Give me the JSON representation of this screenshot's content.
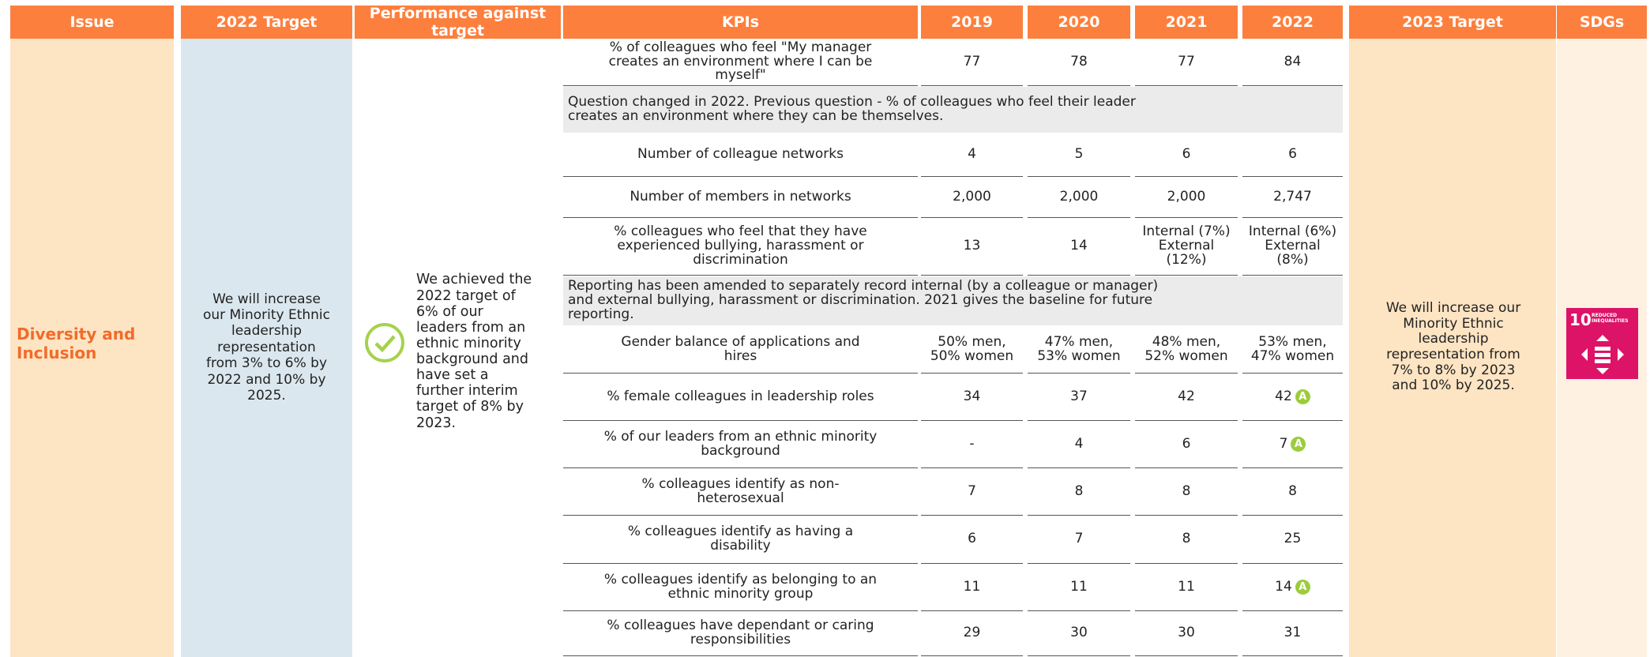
{
  "header": [
    "Issue",
    "2022 Target",
    "Performance against target",
    "KPIs",
    "2019",
    "2020",
    "2021",
    "2022",
    "2023 Target",
    "SDGs"
  ],
  "issue": "Diversity and Inclusion",
  "target_2022": "We will increase our Minority Ethnic leadership representation from 3% to 6% by 2022 and 10% by 2025.",
  "performance": "We achieved the 2022 target of 6% of our leaders from an ethnic minority background and have set a further interim target of 8% by 2023.",
  "target_2023": "We will increase our Minority Ethnic leadership representation from 7% to 8% by 2023 and 10% by 2025.",
  "sdg": {
    "number": "10",
    "label": "REDUCED INEQUALITIES"
  },
  "rows": [
    {
      "kpi": "% of colleagues who feel \"My manager creates an environment where I can be myself\"",
      "values": [
        "77",
        "78",
        "77",
        "84"
      ]
    },
    {
      "note": "Question changed in 2022. Previous question - % of colleagues who feel their leader creates an environment where they can be themselves."
    },
    {
      "kpi": "Number of colleague networks",
      "values": [
        "4",
        "5",
        "6",
        "6"
      ]
    },
    {
      "kpi": "Number of members in networks",
      "values": [
        "2,000",
        "2,000",
        "2,000",
        "2,747"
      ]
    },
    {
      "kpi": "% colleagues who feel that they have experienced bullying, harassment or discrimination",
      "values": [
        "13",
        "14",
        "Internal (7%) External (12%)",
        "Internal (6%) External (8%)"
      ]
    },
    {
      "note": "Reporting has been amended to separately record internal (by a colleague or manager) and external bullying, harassment or discrimination. 2021 gives the baseline for future reporting."
    },
    {
      "kpi": "Gender balance of applications and hires",
      "values": [
        "50% men, 50% women",
        "47% men, 53% women",
        "48% men, 52% women",
        "53% men, 47% women"
      ]
    },
    {
      "kpi": "% female colleagues in leadership roles",
      "values": [
        "34",
        "37",
        "42",
        "42"
      ],
      "badge": "A"
    },
    {
      "kpi": "% of our leaders from an ethnic minority background",
      "values": [
        "-",
        "4",
        "6",
        "7"
      ],
      "badge": "A"
    },
    {
      "kpi": "% colleagues identify as non-heterosexual",
      "values": [
        "7",
        "8",
        "8",
        "8"
      ]
    },
    {
      "kpi": "% colleagues identify as having a disability",
      "values": [
        "6",
        "7",
        "8",
        "25"
      ]
    },
    {
      "kpi": "% colleagues identify as belonging to an ethnic minority group",
      "values": [
        "11",
        "11",
        "11",
        "14"
      ],
      "badge": "A"
    },
    {
      "kpi": "% colleagues have dependant or caring responsibilities",
      "values": [
        "29",
        "30",
        "30",
        "31"
      ]
    }
  ]
}
